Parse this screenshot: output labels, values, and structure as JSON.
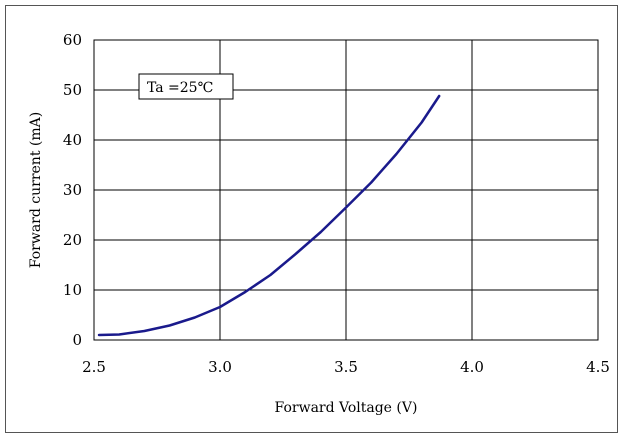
{
  "chart_data": {
    "type": "line",
    "title": "",
    "xlabel": "Forward Voltage (V)",
    "ylabel": "Forward current (mA)",
    "xlim": [
      2.5,
      4.5
    ],
    "ylim": [
      0,
      60
    ],
    "x_ticks": [
      "2.5",
      "3.0",
      "3.5",
      "4.0",
      "4.5"
    ],
    "y_ticks": [
      "0",
      "10",
      "20",
      "30",
      "40",
      "50",
      "60"
    ],
    "grid": true,
    "legend": "none",
    "annotation": "Ta =25℃",
    "series": [
      {
        "color": "#1a1a8c",
        "x": [
          2.52,
          2.6,
          2.7,
          2.8,
          2.9,
          3.0,
          3.1,
          3.2,
          3.3,
          3.4,
          3.5,
          3.6,
          3.7,
          3.8,
          3.87
        ],
        "y": [
          1.0,
          1.1,
          1.8,
          2.9,
          4.5,
          6.6,
          9.6,
          13.0,
          17.2,
          21.6,
          26.5,
          31.5,
          37.2,
          43.5,
          48.8
        ]
      }
    ]
  }
}
